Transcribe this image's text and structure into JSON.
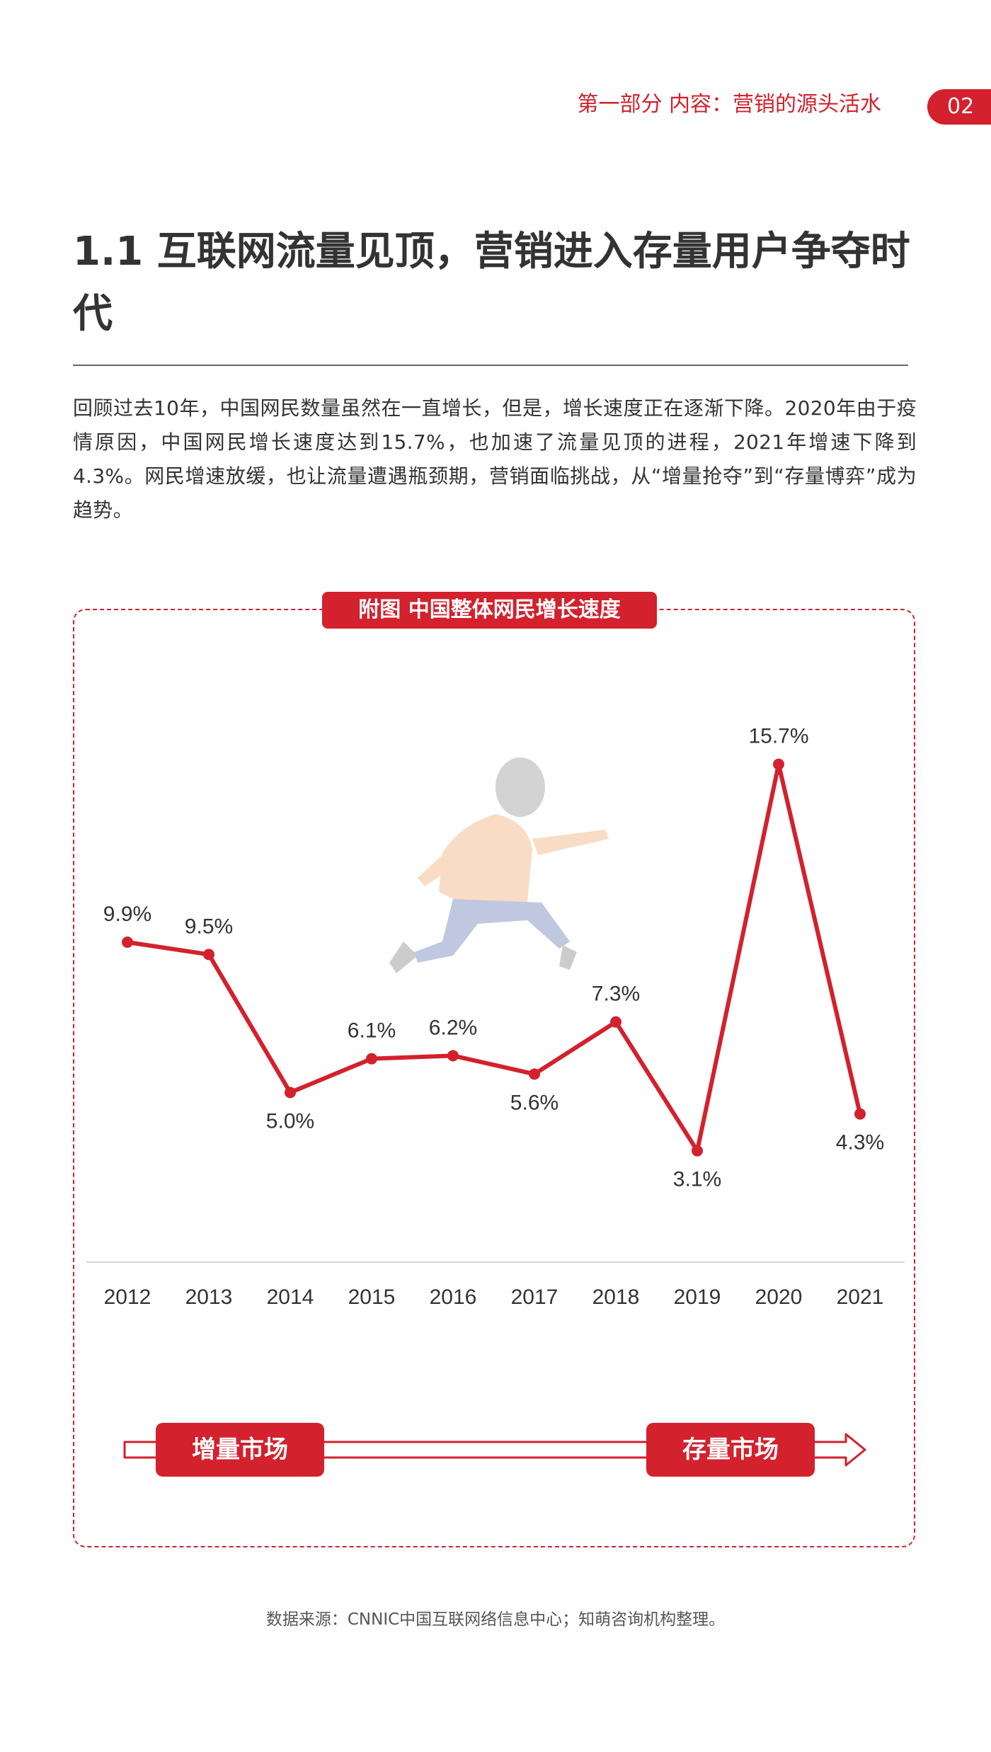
{
  "header": {
    "section": "第一部分  内容：营销的源头活水",
    "page_number": "02"
  },
  "title": "1.1  互联网流量见顶，营销进入存量用户争夺时代",
  "intro": "回顾过去10年，中国网民数量虽然在一直增长，但是，增长速度正在逐渐下降。2020年由于疫情原因，中国网民增长速度达到15.7%，也加速了流量见顶的进程，2021年增速下降到4.3%。网民增速放缓，也让流量遭遇瓶颈期，营销面临挑战，从“增量抢夺”到“存量博弈”成为趋势。",
  "figure": {
    "caption": "附图   中国整体网民增长速度",
    "illustration_icon": "running-man-illustration"
  },
  "chart_data": {
    "type": "line",
    "title": "",
    "xlabel": "",
    "ylabel": "",
    "x": [
      "2012",
      "2013",
      "2014",
      "2015",
      "2016",
      "2017",
      "2018",
      "2019",
      "2020",
      "2021"
    ],
    "series": [
      {
        "values": [
          9.9,
          9.5,
          5.0,
          6.1,
          6.2,
          5.6,
          7.3,
          3.1,
          15.7,
          4.3
        ],
        "labels": [
          "9.9%",
          "9.5%",
          "5.0%",
          "6.1%",
          "6.2%",
          "5.6%",
          "7.3%",
          "3.1%",
          "15.7%",
          "4.3%"
        ],
        "color": "#d3212d"
      }
    ],
    "ylim": [
      0,
      18
    ],
    "grid": false,
    "legend": "none"
  },
  "market": {
    "start_label": "增量市场",
    "end_label": "存量市场",
    "color": "#d3212d"
  },
  "source": "数据来源：CNNIC中国互联网络信息中心；知萌咨询机构整理。"
}
